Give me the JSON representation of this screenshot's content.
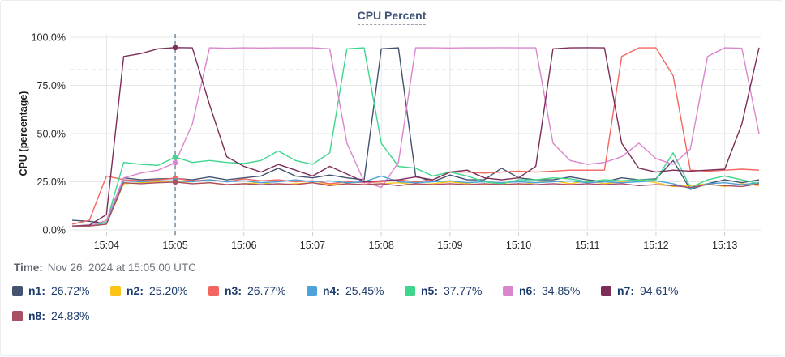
{
  "header": {
    "title": "CPU Percent"
  },
  "time_row": {
    "label": "Time:",
    "value": "Nov 26, 2024 at 15:05:00 UTC"
  },
  "colors": {
    "grid": "#e7e7ea",
    "tick_mark": "#cdd0d4",
    "axis_text": "#26282c",
    "crosshair": "#4d7389",
    "threshold": "#4d7389",
    "title_text": "#3f5378",
    "legend_text": "#1d3c6d"
  },
  "chart_data": {
    "type": "line",
    "title": "CPU Percent",
    "xlabel": "",
    "ylabel": "CPU (percentage)",
    "ylim": [
      0,
      100
    ],
    "grid": true,
    "legend_position": "bottom",
    "y_ticks": [
      {
        "value": 100,
        "label": "100.0%"
      },
      {
        "value": 75,
        "label": "75.0%"
      },
      {
        "value": 50,
        "label": "50.0%"
      },
      {
        "value": 25,
        "label": "25.0%"
      },
      {
        "value": 0,
        "label": "0.0%"
      }
    ],
    "x_start_seconds": 0,
    "x_end_seconds": 600,
    "x_start_time": "15:03:30",
    "sample_interval_seconds": 15,
    "x_ticks": [
      {
        "seconds": 30,
        "label": "15:04"
      },
      {
        "seconds": 90,
        "label": "15:05"
      },
      {
        "seconds": 150,
        "label": "15:06"
      },
      {
        "seconds": 210,
        "label": "15:07"
      },
      {
        "seconds": 270,
        "label": "15:08"
      },
      {
        "seconds": 330,
        "label": "15:09"
      },
      {
        "seconds": 390,
        "label": "15:10"
      },
      {
        "seconds": 450,
        "label": "15:11"
      },
      {
        "seconds": 510,
        "label": "15:12"
      },
      {
        "seconds": 570,
        "label": "15:13"
      }
    ],
    "threshold_percent": 83,
    "crosshair": {
      "seconds": 90,
      "time_label": "15:05:00"
    },
    "series": [
      {
        "name": "n1",
        "legend_label": "n1:",
        "legend_value": "26.72%",
        "color": "#44536f",
        "values": [
          5,
          4.5,
          3.5,
          27,
          26,
          26.5,
          26.72,
          26,
          27.5,
          26,
          27,
          28,
          32,
          28,
          27,
          28.5,
          27,
          26,
          94,
          94.5,
          28,
          25,
          28.5,
          26,
          26,
          32,
          27,
          26,
          26,
          27.5,
          26,
          25,
          27,
          26,
          26.5,
          36,
          21,
          24,
          26,
          24.5,
          26
        ]
      },
      {
        "name": "n2",
        "legend_label": "n2:",
        "legend_value": "25.20%",
        "color": "#fcc419",
        "values": [
          2,
          2,
          3,
          24,
          24.5,
          25,
          25.2,
          24,
          24.5,
          23.5,
          24,
          24.5,
          23.5,
          24,
          24.5,
          23.5,
          24,
          23.5,
          24,
          24.5,
          23.5,
          24,
          25,
          24,
          23.5,
          24,
          23.5,
          24.5,
          25.5,
          24,
          25.5,
          24,
          25,
          26,
          24.5,
          22.5,
          23,
          24,
          22.5,
          24,
          23
        ]
      },
      {
        "name": "n3",
        "legend_label": "n3:",
        "legend_value": "26.77%",
        "color": "#f3655e",
        "values": [
          3,
          5,
          28,
          26,
          25.5,
          26,
          26.77,
          25.5,
          26,
          25,
          26.5,
          25.5,
          26,
          25,
          25.5,
          24,
          25,
          24.5,
          25,
          26,
          25,
          26,
          30,
          30,
          29.5,
          30,
          30.5,
          30,
          30.5,
          31,
          31,
          31,
          90,
          94.5,
          94.5,
          80,
          31,
          30.5,
          31,
          31.5,
          31
        ]
      },
      {
        "name": "n4",
        "legend_label": "n4:",
        "legend_value": "25.45%",
        "color": "#4ba3d9",
        "values": [
          2,
          2.5,
          4,
          25.5,
          25,
          25.5,
          25.45,
          25,
          26,
          25,
          25.5,
          24.5,
          25,
          26,
          25,
          25.5,
          24.5,
          25,
          28,
          25,
          24.5,
          25,
          25.5,
          24.5,
          25,
          24.5,
          25,
          24.5,
          25,
          25.5,
          24.5,
          25,
          24.5,
          25,
          25.5,
          24,
          21.5,
          24,
          24.5,
          23.5,
          24.5
        ]
      },
      {
        "name": "n5",
        "legend_label": "n5:",
        "legend_value": "37.77%",
        "color": "#3dd68c",
        "values": [
          2,
          2,
          4,
          35,
          34,
          33.5,
          37.77,
          35,
          36,
          35,
          34.5,
          36,
          41,
          36,
          34,
          40,
          94,
          94.5,
          45,
          33,
          32,
          28,
          30,
          28,
          25,
          24,
          26,
          26,
          27,
          26.5,
          25,
          26,
          25.5,
          26,
          26,
          40,
          22,
          26,
          28,
          26,
          24
        ]
      },
      {
        "name": "n6",
        "legend_label": "n6:",
        "legend_value": "34.85%",
        "color": "#db85cd",
        "values": [
          2,
          2,
          5,
          27,
          29.5,
          31,
          34.85,
          55,
          94.5,
          94.3,
          94.5,
          94.4,
          94.5,
          94.5,
          94.5,
          94,
          45,
          25,
          22,
          35,
          94.5,
          94.5,
          94.4,
          94.5,
          94.5,
          94.6,
          94.5,
          94.5,
          45,
          36,
          34,
          35,
          38,
          45,
          37,
          34,
          42,
          90,
          94.5,
          94.3,
          50
        ]
      },
      {
        "name": "n7",
        "legend_label": "n7:",
        "legend_value": "94.61%",
        "color": "#7c2d58",
        "values": [
          2,
          2.5,
          8,
          90,
          91.5,
          94,
          94.61,
          94.5,
          65,
          38,
          33,
          30,
          34,
          31,
          28,
          33,
          29,
          25,
          25.5,
          26,
          27.5,
          26,
          30,
          31,
          27,
          26,
          27,
          33,
          94,
          94.5,
          94.6,
          94.5,
          45,
          32,
          30,
          31,
          30.5,
          31,
          31.5,
          55,
          94.6
        ]
      },
      {
        "name": "n8",
        "legend_label": "n8:",
        "legend_value": "24.83%",
        "color": "#a94f64",
        "values": [
          2,
          2,
          3,
          24.5,
          24,
          24.5,
          24.83,
          24,
          24.5,
          23.5,
          24,
          23.5,
          24,
          23.5,
          24.5,
          23,
          24,
          23.5,
          24,
          23,
          24,
          23.5,
          24,
          23.5,
          24,
          23.5,
          24,
          23.5,
          24,
          23.5,
          24,
          23.5,
          24,
          23,
          23.5,
          23,
          22,
          23.5,
          23,
          22.5,
          24
        ]
      }
    ]
  }
}
